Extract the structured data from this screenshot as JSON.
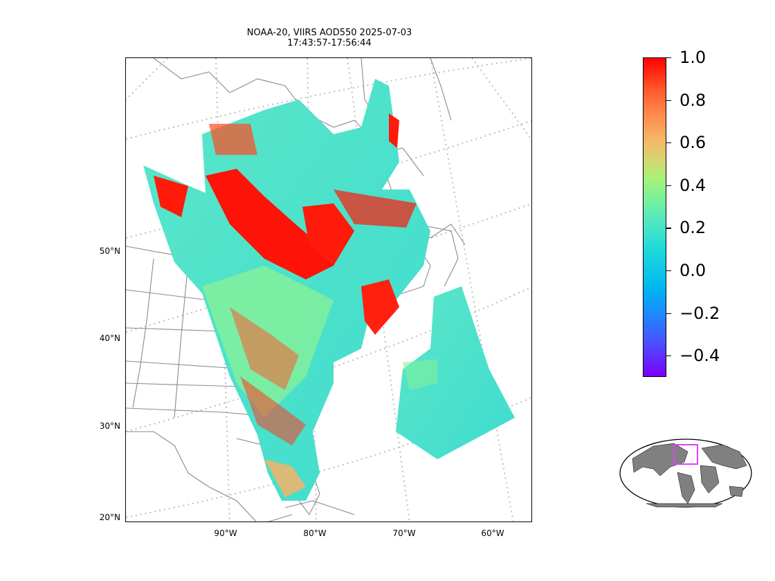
{
  "title": {
    "line1": "NOAA-20, VIIRS AOD550 2025-07-03",
    "line2": "17:43:57-17:56:44"
  },
  "map": {
    "lat_labels": [
      "50°N",
      "40°N",
      "30°N",
      "20°N"
    ],
    "lon_labels": [
      "90°W",
      "80°W",
      "70°W",
      "60°W"
    ],
    "gridlines": "dotted",
    "land_outline_color": "#808080"
  },
  "colorbar": {
    "colormap": "rainbow",
    "range": [
      -0.5,
      1.0
    ],
    "tick_labels": [
      "1.0",
      "0.8",
      "0.6",
      "0.4",
      "0.2",
      "0.0",
      "−0.2",
      "−0.4"
    ],
    "tick_values": [
      1.0,
      0.8,
      0.6,
      0.4,
      0.2,
      0.0,
      -0.2,
      -0.4
    ]
  },
  "inset_globe": {
    "land_color": "#808080",
    "highlight_box_color": "#e040fb"
  }
}
